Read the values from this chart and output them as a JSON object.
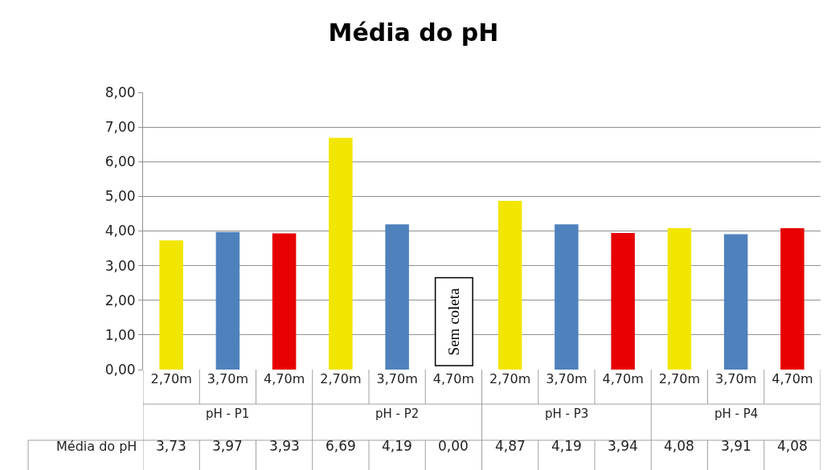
{
  "chart_data": {
    "type": "bar",
    "title": "Média do pH",
    "categories": [
      "2,70m",
      "3,70m",
      "4,70m",
      "2,70m",
      "3,70m",
      "4,70m",
      "2,70m",
      "3,70m",
      "4,70m",
      "2,70m",
      "3,70m",
      "4,70m"
    ],
    "series": [
      {
        "name": "Média do pH",
        "colors": [
          "#f2e600",
          "#4f81bd",
          "#e60000",
          "#f2e600",
          "#4f81bd",
          "#e60000",
          "#f2e600",
          "#4f81bd",
          "#e60000",
          "#f2e600",
          "#4f81bd",
          "#e60000"
        ],
        "values": [
          3.73,
          3.97,
          3.93,
          6.69,
          4.19,
          0.0,
          4.87,
          4.19,
          3.94,
          4.08,
          3.91,
          4.08
        ],
        "value_labels": [
          "3,73",
          "3,97",
          "3,93",
          "6,69",
          "4,19",
          "0,00",
          "4,87",
          "4,19",
          "3,94",
          "4,08",
          "3,91",
          "4,08"
        ]
      }
    ],
    "ylim": [
      0,
      8
    ],
    "yticks": [
      {
        "value": 0,
        "label": "0,00"
      },
      {
        "value": 1,
        "label": "1,00"
      },
      {
        "value": 2,
        "label": "2,00"
      },
      {
        "value": 3,
        "label": "3,00"
      },
      {
        "value": 4,
        "label": "4,00"
      },
      {
        "value": 5,
        "label": "5,00"
      },
      {
        "value": 6,
        "label": "6,00"
      },
      {
        "value": 7,
        "label": "7,00"
      },
      {
        "value": 8,
        "label": "8,00"
      }
    ],
    "grid": "y",
    "legend": false,
    "annotations": [
      "pH - P1",
      "pH - P2",
      "pH - P3",
      "pH - P4",
      "Sem coleta"
    ]
  }
}
